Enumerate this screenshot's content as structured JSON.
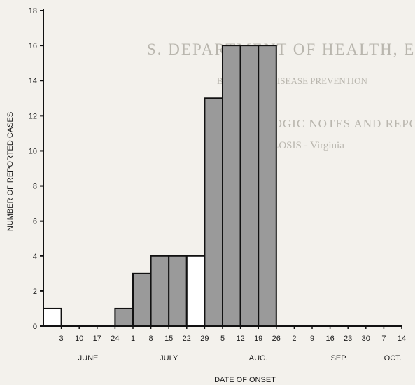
{
  "chart_data": {
    "type": "bar",
    "xlabel": "DATE OF ONSET",
    "ylabel": "NUMBER OF REPORTED CASES",
    "ylim": [
      0,
      18
    ],
    "yticks": [
      "0",
      "2",
      "4",
      "6",
      "8",
      "10",
      "12",
      "14",
      "16",
      "18"
    ],
    "weeks": [
      "3",
      "10",
      "17",
      "24",
      "1",
      "8",
      "15",
      "22",
      "29",
      "5",
      "12",
      "19",
      "26",
      "2",
      "9",
      "16",
      "23",
      "30",
      "7",
      "14"
    ],
    "months": [
      "JUNE",
      "JULY",
      "AUG.",
      "SEP.",
      "OCT."
    ],
    "series": [
      {
        "values": [
          1,
          0,
          0,
          0,
          1,
          3,
          4,
          4,
          4,
          13,
          16,
          16,
          16,
          0,
          0,
          0,
          0,
          0,
          0,
          0
        ],
        "colors": [
          "#ffffff",
          "#ffffff",
          "#ffffff",
          "#ffffff",
          "#9a9a9a",
          "#9a9a9a",
          "#9a9a9a",
          "#9a9a9a",
          "#ffffff",
          "#9a9a9a",
          "#9a9a9a",
          "#9a9a9a",
          "#9a9a9a",
          "#ffffff",
          "#ffffff",
          "#ffffff",
          "#ffffff",
          "#ffffff",
          "#ffffff",
          "#ffffff"
        ]
      }
    ],
    "grid": false
  },
  "background_text": [
    "S. DEPARTMENT OF HEALTH, EDUCATION",
    "BUREAU OF DISEASE PREVENTION",
    "EPIDEMIOLOGIC NOTES AND REPORTS",
    "BRUCELLOSIS - Virginia"
  ]
}
